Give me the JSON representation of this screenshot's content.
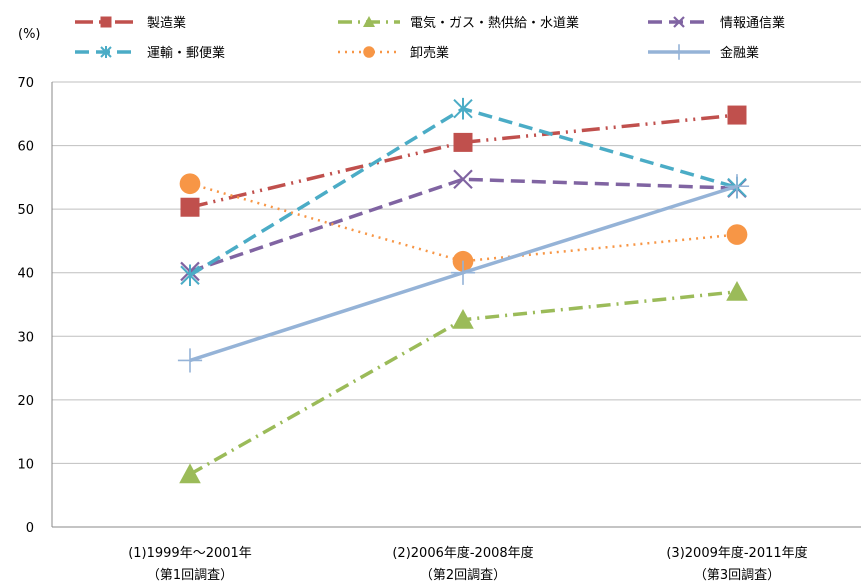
{
  "chart_data": {
    "type": "line",
    "ylabel": "(%)",
    "ylim": [
      0,
      70
    ],
    "yticks": [
      0,
      10,
      20,
      30,
      40,
      50,
      60,
      70
    ],
    "grid": true,
    "legend_position": "top",
    "categories": [
      [
        "(1)1999年～2001年",
        "（第1回調査）"
      ],
      [
        "(2)2006年度-2008年度",
        "（第2回調査）"
      ],
      [
        "(3)2009年度-2011年度",
        "（第3回調査）"
      ]
    ],
    "series": [
      {
        "name": "製造業",
        "values": [
          50.3,
          60.5,
          64.8
        ],
        "color": "#c0504d",
        "marker": "square",
        "dash": "dashdotdot"
      },
      {
        "name": "電気・ガス・熱供給・水道業",
        "values": [
          8.3,
          32.6,
          37.0
        ],
        "color": "#9bbb59",
        "marker": "triangle",
        "dash": "dashdot"
      },
      {
        "name": "情報通信業",
        "values": [
          40.2,
          54.7,
          53.3
        ],
        "color": "#8064a2",
        "marker": "x",
        "dash": "dash"
      },
      {
        "name": "運輸・郵便業",
        "values": [
          39.6,
          65.8,
          53.4
        ],
        "color": "#4bacc6",
        "marker": "asterisk",
        "dash": "dash"
      },
      {
        "name": "卸売業",
        "values": [
          54.0,
          41.8,
          46.0
        ],
        "color": "#f79646",
        "marker": "circle",
        "dash": "dot"
      },
      {
        "name": "金融業",
        "values": [
          26.2,
          40.0,
          53.6
        ],
        "color": "#95b3d7",
        "marker": "plus",
        "dash": "solid"
      }
    ]
  }
}
